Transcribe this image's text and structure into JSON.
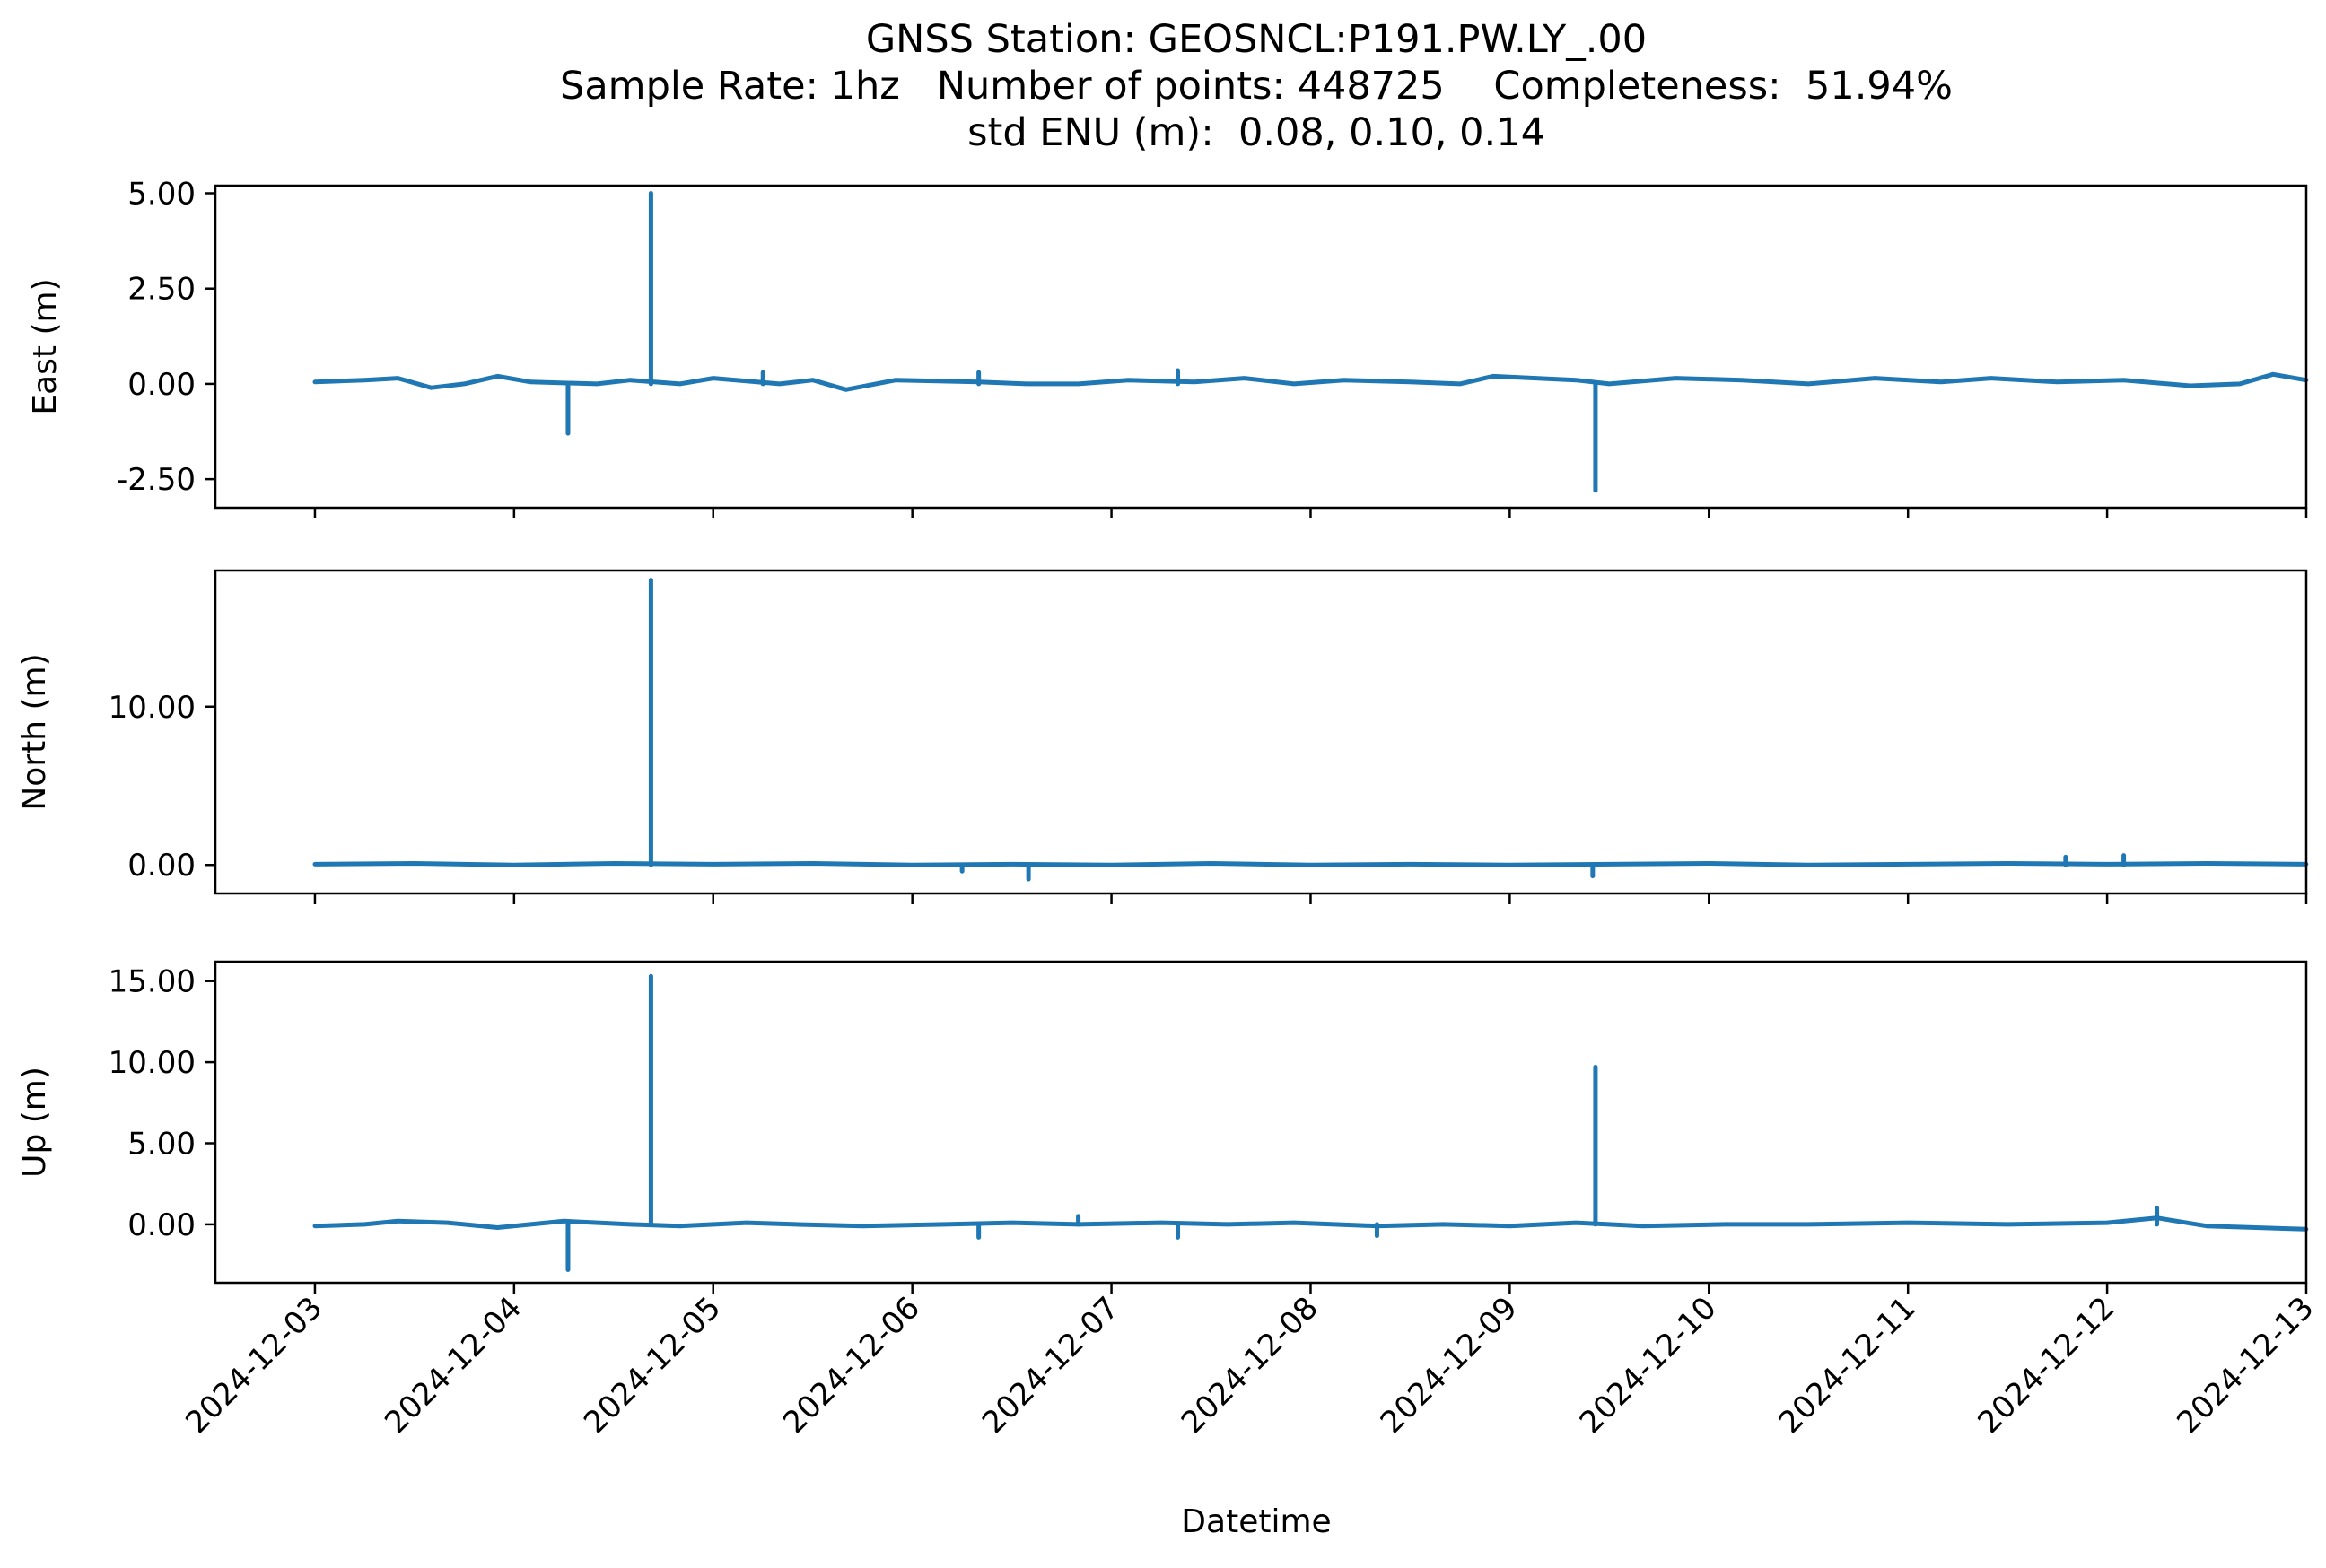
{
  "title_lines": [
    "GNSS Station: GEOSNCL:P191.PW.LY_.00",
    "Sample Rate: 1hz   Number of points: 448725    Completeness:  51.94%",
    "std ENU (m):  0.08, 0.10, 0.14"
  ],
  "chart_data": {
    "type": "line",
    "xlabel": "Datetime",
    "x_ticks": [
      "2024-12-03",
      "2024-12-04",
      "2024-12-05",
      "2024-12-06",
      "2024-12-07",
      "2024-12-08",
      "2024-12-09",
      "2024-12-10",
      "2024-12-11",
      "2024-12-12",
      "2024-12-13"
    ],
    "xlim": [
      "2024-12-02T12:00",
      "2024-12-13T00:00"
    ],
    "color": "#1f77b4",
    "grid": false,
    "panels": [
      {
        "ylabel": "East (m)",
        "ylim": [
          -3.25,
          5.2
        ],
        "yticks": [
          5.0,
          2.5,
          0.0,
          -2.5
        ],
        "yticklabels": [
          "5.00",
          "2.50",
          "0.00",
          "-2.50"
        ],
        "baseline": [
          [
            "2024-12-03T00:00",
            0.05
          ],
          [
            "2024-12-03T06:00",
            0.1
          ],
          [
            "2024-12-03T10:00",
            0.15
          ],
          [
            "2024-12-03T14:00",
            -0.1
          ],
          [
            "2024-12-03T18:00",
            0.0
          ],
          [
            "2024-12-03T22:00",
            0.2
          ],
          [
            "2024-12-04T02:00",
            0.05
          ],
          [
            "2024-12-04T10:00",
            0.0
          ],
          [
            "2024-12-04T14:00",
            0.1
          ],
          [
            "2024-12-04T20:00",
            0.0
          ],
          [
            "2024-12-05T00:00",
            0.15
          ],
          [
            "2024-12-05T08:00",
            0.0
          ],
          [
            "2024-12-05T12:00",
            0.1
          ],
          [
            "2024-12-05T16:00",
            -0.15
          ],
          [
            "2024-12-05T22:00",
            0.1
          ],
          [
            "2024-12-06T08:00",
            0.05
          ],
          [
            "2024-12-06T14:00",
            0.0
          ],
          [
            "2024-12-06T20:00",
            0.0
          ],
          [
            "2024-12-07T02:00",
            0.1
          ],
          [
            "2024-12-07T10:00",
            0.05
          ],
          [
            "2024-12-07T16:00",
            0.15
          ],
          [
            "2024-12-07T22:00",
            0.0
          ],
          [
            "2024-12-08T04:00",
            0.1
          ],
          [
            "2024-12-08T12:00",
            0.05
          ],
          [
            "2024-12-08T18:00",
            0.0
          ],
          [
            "2024-12-08T22:00",
            0.2
          ],
          [
            "2024-12-09T08:00",
            0.1
          ],
          [
            "2024-12-09T12:00",
            0.0
          ],
          [
            "2024-12-09T20:00",
            0.15
          ],
          [
            "2024-12-10T04:00",
            0.1
          ],
          [
            "2024-12-10T12:00",
            0.0
          ],
          [
            "2024-12-10T20:00",
            0.15
          ],
          [
            "2024-12-11T04:00",
            0.05
          ],
          [
            "2024-12-11T10:00",
            0.15
          ],
          [
            "2024-12-11T18:00",
            0.05
          ],
          [
            "2024-12-12T02:00",
            0.1
          ],
          [
            "2024-12-12T10:00",
            -0.05
          ],
          [
            "2024-12-12T16:00",
            0.0
          ],
          [
            "2024-12-12T20:00",
            0.25
          ],
          [
            "2024-12-12T23:59",
            0.1
          ]
        ],
        "spikes": [
          [
            "2024-12-04T06:30",
            -1.3
          ],
          [
            "2024-12-04T16:30",
            5.0
          ],
          [
            "2024-12-09T10:20",
            -2.8
          ],
          [
            "2024-12-06T08:00",
            0.3
          ],
          [
            "2024-12-07T08:00",
            0.35
          ],
          [
            "2024-12-05T06:00",
            0.3
          ]
        ]
      },
      {
        "ylabel": "North (m)",
        "ylim": [
          -1.8,
          18.6
        ],
        "yticks": [
          10.0,
          0.0
        ],
        "yticklabels": [
          "10.00",
          "0.00"
        ],
        "baseline": [
          [
            "2024-12-03T00:00",
            0.05
          ],
          [
            "2024-12-03T12:00",
            0.1
          ],
          [
            "2024-12-04T00:00",
            0.0
          ],
          [
            "2024-12-04T12:00",
            0.1
          ],
          [
            "2024-12-05T00:00",
            0.05
          ],
          [
            "2024-12-05T12:00",
            0.1
          ],
          [
            "2024-12-06T00:00",
            0.0
          ],
          [
            "2024-12-06T12:00",
            0.05
          ],
          [
            "2024-12-07T00:00",
            0.0
          ],
          [
            "2024-12-07T12:00",
            0.1
          ],
          [
            "2024-12-08T00:00",
            0.0
          ],
          [
            "2024-12-08T12:00",
            0.05
          ],
          [
            "2024-12-09T00:00",
            0.0
          ],
          [
            "2024-12-09T12:00",
            0.05
          ],
          [
            "2024-12-10T00:00",
            0.1
          ],
          [
            "2024-12-10T12:00",
            0.0
          ],
          [
            "2024-12-11T00:00",
            0.05
          ],
          [
            "2024-12-11T12:00",
            0.1
          ],
          [
            "2024-12-12T00:00",
            0.05
          ],
          [
            "2024-12-12T12:00",
            0.1
          ],
          [
            "2024-12-12T23:59",
            0.05
          ]
        ],
        "spikes": [
          [
            "2024-12-04T16:30",
            18.0
          ],
          [
            "2024-12-06T14:00",
            -0.9
          ],
          [
            "2024-12-09T10:00",
            -0.7
          ],
          [
            "2024-12-11T19:00",
            0.5
          ],
          [
            "2024-12-12T02:00",
            0.6
          ],
          [
            "2024-12-06T06:00",
            -0.4
          ]
        ]
      },
      {
        "ylabel": "Up (m)",
        "ylim": [
          -3.6,
          16.2
        ],
        "yticks": [
          15.0,
          10.0,
          5.0,
          0.0
        ],
        "yticklabels": [
          "15.00",
          "10.00",
          "5.00",
          "0.00"
        ],
        "baseline": [
          [
            "2024-12-03T00:00",
            -0.1
          ],
          [
            "2024-12-03T06:00",
            0.0
          ],
          [
            "2024-12-03T10:00",
            0.2
          ],
          [
            "2024-12-03T16:00",
            0.1
          ],
          [
            "2024-12-03T22:00",
            -0.2
          ],
          [
            "2024-12-04T06:00",
            0.2
          ],
          [
            "2024-12-04T14:00",
            0.0
          ],
          [
            "2024-12-04T20:00",
            -0.1
          ],
          [
            "2024-12-05T04:00",
            0.1
          ],
          [
            "2024-12-05T10:00",
            0.0
          ],
          [
            "2024-12-05T18:00",
            -0.1
          ],
          [
            "2024-12-06T04:00",
            0.0
          ],
          [
            "2024-12-06T12:00",
            0.1
          ],
          [
            "2024-12-06T20:00",
            0.0
          ],
          [
            "2024-12-07T06:00",
            0.1
          ],
          [
            "2024-12-07T14:00",
            0.0
          ],
          [
            "2024-12-07T22:00",
            0.1
          ],
          [
            "2024-12-08T08:00",
            -0.1
          ],
          [
            "2024-12-08T16:00",
            0.0
          ],
          [
            "2024-12-09T00:00",
            -0.1
          ],
          [
            "2024-12-09T08:00",
            0.1
          ],
          [
            "2024-12-09T16:00",
            -0.1
          ],
          [
            "2024-12-10T02:00",
            0.0
          ],
          [
            "2024-12-10T12:00",
            0.0
          ],
          [
            "2024-12-11T00:00",
            0.1
          ],
          [
            "2024-12-11T12:00",
            0.0
          ],
          [
            "2024-12-12T00:00",
            0.1
          ],
          [
            "2024-12-12T06:00",
            0.4
          ],
          [
            "2024-12-12T12:00",
            -0.1
          ],
          [
            "2024-12-12T23:59",
            -0.3
          ]
        ],
        "spikes": [
          [
            "2024-12-04T06:30",
            -2.8
          ],
          [
            "2024-12-04T16:30",
            15.3
          ],
          [
            "2024-12-09T10:20",
            9.7
          ],
          [
            "2024-12-06T08:00",
            -0.8
          ],
          [
            "2024-12-07T08:00",
            -0.8
          ],
          [
            "2024-12-08T08:00",
            -0.7
          ],
          [
            "2024-12-12T06:00",
            1.0
          ],
          [
            "2024-12-06T20:00",
            0.5
          ]
        ]
      }
    ]
  }
}
